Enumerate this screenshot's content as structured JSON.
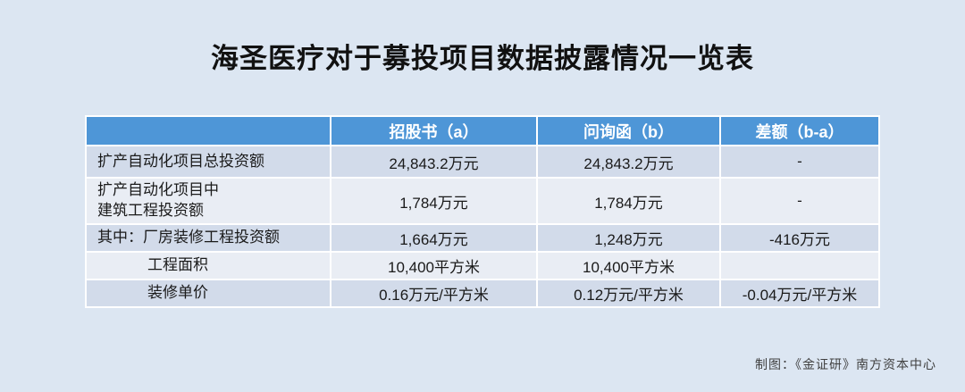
{
  "page": {
    "title": "海圣医疗对于募投项目数据披露情况一览表",
    "credit": "制图：《金证研》南方资本中心"
  },
  "colors": {
    "background": "#DCE6F2",
    "header_bg": "#4E96D7",
    "header_text": "#FFFFFF",
    "row_band_dark": "#D2DBEA",
    "row_band_light": "#E9EDF4",
    "grid_lines": "#FFFFFF",
    "body_text": "#1A1A1A"
  },
  "chart_data": {
    "type": "table",
    "title": "海圣医疗对于募投项目数据披露情况一览表",
    "columns": [
      "",
      "招股书（a）",
      "问询函（b）",
      "差额（b-a）"
    ],
    "rows": [
      [
        "扩产自动化项目总投资额",
        "24,843.2万元",
        "24,843.2万元",
        "-"
      ],
      [
        "扩产自动化项目中\n建筑工程投资额",
        "1,784万元",
        "1,784万元",
        "-"
      ],
      [
        "其中：厂房装修工程投资额",
        "1,664万元",
        "1,248万元",
        "-416万元"
      ],
      [
        "工程面积",
        "10,400平方米",
        "10,400平方米",
        ""
      ],
      [
        "装修单价",
        "0.16万元/平方米",
        "0.12万元/平方米",
        "-0.04万元/平方米"
      ]
    ],
    "credit": "制图：《金证研》南方资本中心",
    "layout": {
      "banded_rows": true,
      "header_position": "top",
      "label_column_align": "left",
      "value_columns_align": "center"
    }
  }
}
